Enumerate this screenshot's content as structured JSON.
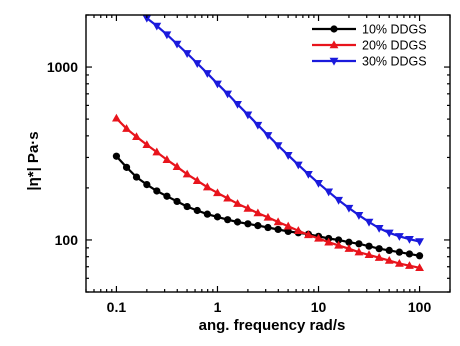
{
  "chart_data": {
    "type": "line",
    "xlabel": "ang. frequency rad/s",
    "ylabel": "|η*| Pa·s",
    "xscale": "log",
    "yscale": "log",
    "xlim": [
      0.05,
      200
    ],
    "ylim": [
      50,
      2000
    ],
    "x_ticks": [
      "0.1",
      "1",
      "10",
      "100"
    ],
    "y_ticks": [
      "100",
      "1000"
    ],
    "grid": false,
    "legend_position": "top-right",
    "series": [
      {
        "name": "10% DDGS",
        "color": "#000000",
        "marker": "circle",
        "x": [
          0.1,
          0.126,
          0.158,
          0.2,
          0.251,
          0.316,
          0.398,
          0.501,
          0.631,
          0.794,
          1,
          1.26,
          1.58,
          2,
          2.51,
          3.16,
          3.98,
          5.01,
          6.31,
          7.94,
          10,
          12.6,
          15.8,
          20,
          25.1,
          31.6,
          39.8,
          50.1,
          63.1,
          79.4,
          100
        ],
        "y": [
          305,
          263,
          231,
          209,
          192,
          179,
          167,
          156,
          148,
          141,
          136,
          131,
          127,
          124,
          121,
          118,
          115,
          112,
          110,
          108,
          105,
          102,
          100,
          97,
          95,
          92,
          89,
          87,
          85,
          83,
          81
        ]
      },
      {
        "name": "20% DDGS",
        "color": "#e8141c",
        "marker": "triangle-up",
        "x": [
          0.1,
          0.126,
          0.158,
          0.2,
          0.251,
          0.316,
          0.398,
          0.501,
          0.631,
          0.794,
          1,
          1.26,
          1.58,
          2,
          2.51,
          3.16,
          3.98,
          5.01,
          6.31,
          7.94,
          10,
          12.6,
          15.8,
          20,
          25.1,
          31.6,
          39.8,
          50.1,
          63.1,
          79.4,
          100
        ],
        "y": [
          505,
          440,
          395,
          355,
          322,
          291,
          265,
          240,
          220,
          202,
          187,
          174,
          162,
          152,
          143,
          135,
          127,
          120,
          113,
          107,
          102,
          97,
          93,
          89,
          85,
          82,
          79,
          76,
          73,
          71,
          69
        ]
      },
      {
        "name": "30% DDGS",
        "color": "#1a1adc",
        "marker": "triangle-down",
        "x": [
          0.2,
          0.251,
          0.316,
          0.398,
          0.501,
          0.631,
          0.794,
          1,
          1.26,
          1.58,
          2,
          2.51,
          3.16,
          3.98,
          5.01,
          6.31,
          7.94,
          10,
          12.6,
          15.8,
          20,
          25.1,
          31.6,
          39.8,
          50.1,
          63.1,
          79.4,
          100
        ],
        "y": [
          1920,
          1730,
          1540,
          1360,
          1200,
          1050,
          920,
          800,
          700,
          610,
          530,
          462,
          403,
          352,
          309,
          272,
          240,
          213,
          190,
          170,
          153,
          139,
          127,
          117,
          110,
          105,
          101,
          98
        ]
      }
    ]
  }
}
